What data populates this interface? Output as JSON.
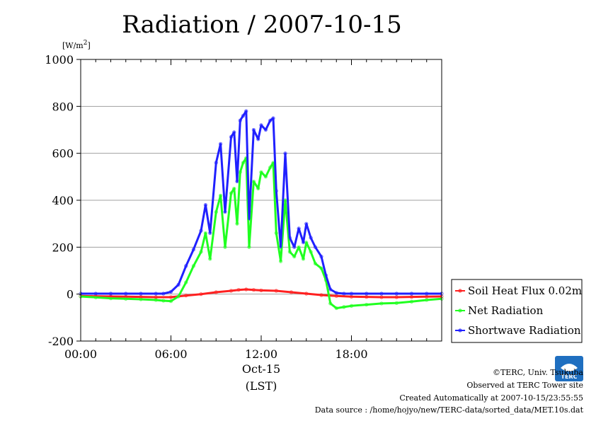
{
  "chart_data": {
    "type": "line",
    "title": "Radiation / 2007-10-15",
    "ylabel": "[W/m2]",
    "ylabel_main": "[W/m",
    "ylabel_sup": "2",
    "ylabel_close": "]",
    "xlabel_date": "Oct-15",
    "xlabel": "(LST)",
    "xlim": [
      0,
      24
    ],
    "ylim": [
      -200,
      1000
    ],
    "x_ticks": [
      {
        "value": 0,
        "label": "00:00"
      },
      {
        "value": 6,
        "label": "06:00"
      },
      {
        "value": 12,
        "label": "12:00"
      },
      {
        "value": 18,
        "label": "18:00"
      }
    ],
    "y_ticks": [
      {
        "value": -200,
        "label": "-200"
      },
      {
        "value": 0,
        "label": "0"
      },
      {
        "value": 200,
        "label": "200"
      },
      {
        "value": 400,
        "label": "400"
      },
      {
        "value": 600,
        "label": "600"
      },
      {
        "value": 800,
        "label": "800"
      },
      {
        "value": 1000,
        "label": "1000"
      }
    ],
    "grid": true,
    "legend_position": "bottom-right outside",
    "series": [
      {
        "name": "Soil Heat Flux 0.02m",
        "color": "#ff2020",
        "x": [
          0,
          1,
          2,
          3,
          4,
          5,
          6,
          7,
          8,
          9,
          10,
          10.5,
          11,
          11.5,
          12,
          13,
          14,
          15,
          16,
          17,
          18,
          19,
          20,
          21,
          22,
          23,
          24
        ],
        "y": [
          -8,
          -9,
          -10,
          -11,
          -12,
          -13,
          -13,
          -6,
          0,
          8,
          14,
          18,
          20,
          18,
          16,
          14,
          8,
          2,
          -4,
          -8,
          -11,
          -12,
          -13,
          -13,
          -12,
          -11,
          -10
        ]
      },
      {
        "name": "Net Radiation",
        "color": "#20ff20",
        "x": [
          0,
          1,
          2,
          3,
          4,
          5,
          5.5,
          6,
          6.5,
          7,
          7.5,
          8,
          8.3,
          8.6,
          9,
          9.3,
          9.6,
          10,
          10.2,
          10.4,
          10.6,
          10.8,
          11,
          11.2,
          11.5,
          11.8,
          12,
          12.3,
          12.6,
          12.8,
          13,
          13.3,
          13.6,
          13.9,
          14.2,
          14.5,
          14.8,
          15,
          15.3,
          15.6,
          16,
          16.3,
          16.6,
          17,
          17.5,
          18,
          19,
          20,
          21,
          22,
          23,
          24
        ],
        "y": [
          -10,
          -14,
          -18,
          -20,
          -22,
          -25,
          -28,
          -30,
          -10,
          50,
          120,
          180,
          260,
          150,
          350,
          420,
          200,
          430,
          450,
          300,
          520,
          560,
          580,
          200,
          480,
          450,
          520,
          500,
          540,
          560,
          260,
          140,
          400,
          180,
          160,
          200,
          150,
          220,
          180,
          130,
          110,
          60,
          -40,
          -60,
          -55,
          -50,
          -45,
          -40,
          -38,
          -32,
          -25,
          -20
        ]
      },
      {
        "name": "Shortwave Radiation",
        "color": "#2020ff",
        "x": [
          0,
          1,
          2,
          3,
          4,
          5,
          5.5,
          6,
          6.5,
          7,
          7.5,
          8,
          8.3,
          8.6,
          9,
          9.3,
          9.6,
          10,
          10.2,
          10.4,
          10.6,
          10.8,
          11,
          11.2,
          11.5,
          11.8,
          12,
          12.3,
          12.6,
          12.8,
          13,
          13.3,
          13.6,
          13.9,
          14.2,
          14.5,
          14.8,
          15,
          15.3,
          15.6,
          16,
          16.3,
          16.6,
          17,
          17.5,
          18,
          19,
          20,
          21,
          22,
          23,
          24
        ],
        "y": [
          2,
          2,
          2,
          2,
          2,
          2,
          2,
          10,
          40,
          120,
          190,
          270,
          380,
          260,
          560,
          640,
          350,
          670,
          690,
          480,
          740,
          760,
          780,
          320,
          700,
          660,
          720,
          700,
          740,
          750,
          440,
          200,
          600,
          240,
          200,
          280,
          220,
          300,
          240,
          200,
          160,
          80,
          20,
          5,
          2,
          2,
          2,
          2,
          2,
          2,
          2,
          2
        ]
      }
    ]
  },
  "footer": {
    "logo_text": "TERC",
    "copyright": "©TERC, Univ. Tsukuba",
    "observed": "Observed at TERC Tower site",
    "created": "Created Automatically at 2007-10-15/23:55:55",
    "source": "Data source : /home/hojyo/new/TERC-data/sorted_data/MET.10s.dat"
  }
}
